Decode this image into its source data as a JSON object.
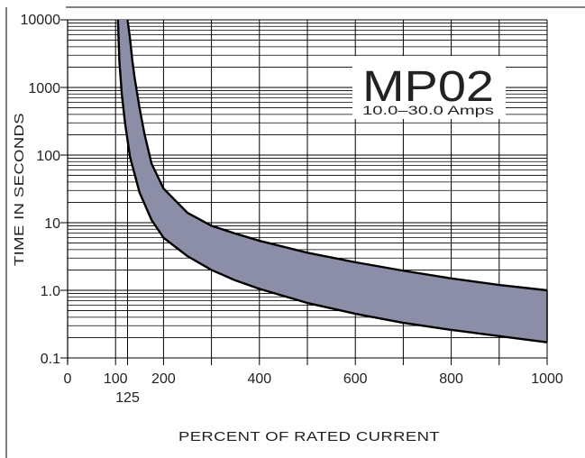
{
  "chart_data": {
    "type": "area",
    "title": "MP02",
    "subtitle": "10.0–30.0 Amps",
    "xlabel": "PERCENT OF RATED CURRENT",
    "ylabel": "TIME IN SECONDS",
    "x_scale": "linear",
    "y_scale": "log",
    "xlim": [
      0,
      1000
    ],
    "ylim": [
      0.1,
      10000
    ],
    "grid": true,
    "x_ticks": [
      {
        "value": 0,
        "label": "0"
      },
      {
        "value": 100,
        "label": "100"
      },
      {
        "value": 125,
        "label": "125"
      },
      {
        "value": 200,
        "label": "200"
      },
      {
        "value": 400,
        "label": "400"
      },
      {
        "value": 600,
        "label": "600"
      },
      {
        "value": 800,
        "label": "800"
      },
      {
        "value": 1000,
        "label": "1000"
      }
    ],
    "y_ticks": [
      {
        "value": 0.1,
        "label": "0.1"
      },
      {
        "value": 1,
        "label": "1.0"
      },
      {
        "value": 10,
        "label": "10"
      },
      {
        "value": 100,
        "label": "100"
      },
      {
        "value": 1000,
        "label": "1000"
      },
      {
        "value": 10000,
        "label": "10000"
      }
    ],
    "series": [
      {
        "x": [
          105,
          108,
          113,
          120,
          130,
          150,
          175,
          200,
          250,
          300,
          350,
          400,
          500,
          600,
          700,
          800,
          900,
          1000
        ],
        "y": [
          10000,
          2400,
          800,
          290,
          95,
          28,
          11,
          6.0,
          3.2,
          2.0,
          1.4,
          1.05,
          0.65,
          0.45,
          0.33,
          0.26,
          0.21,
          0.17
        ]
      },
      {
        "x": [
          125,
          130,
          135,
          140,
          150,
          160,
          175,
          200,
          250,
          300,
          350,
          400,
          500,
          600,
          700,
          800,
          900,
          1000
        ],
        "y": [
          10000,
          5400,
          2500,
          1350,
          500,
          210,
          75,
          32,
          14,
          9.0,
          6.9,
          5.4,
          3.6,
          2.6,
          1.95,
          1.5,
          1.2,
          1.0
        ]
      }
    ],
    "band_color": "#8c8ea8",
    "line_color": "#000000"
  }
}
